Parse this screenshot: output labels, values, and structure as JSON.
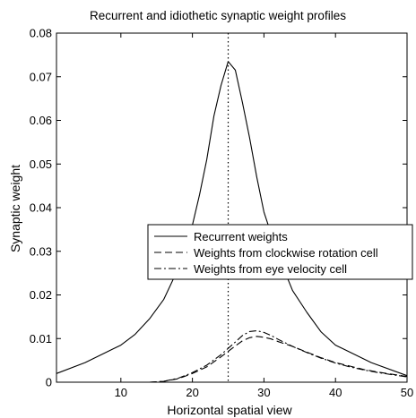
{
  "chart_data": {
    "type": "line",
    "title": "Recurrent and idiothetic synaptic weight profiles",
    "xlabel": "Horizontal spatial view",
    "ylabel": "Synaptic weight",
    "xlim": [
      1,
      50
    ],
    "ylim": [
      0,
      0.08
    ],
    "xticks": [
      10,
      20,
      30,
      40,
      50
    ],
    "yticks": [
      0,
      0.01,
      0.02,
      0.03,
      0.04,
      0.05,
      0.06,
      0.07,
      0.08
    ],
    "xtick_labels": [
      "10",
      "20",
      "30",
      "40",
      "50"
    ],
    "ytick_labels": [
      "0",
      "0.01",
      "0.02",
      "0.03",
      "0.04",
      "0.05",
      "0.06",
      "0.07",
      "0.08"
    ],
    "grid": false,
    "legend_position": "center-right",
    "reference_line": {
      "x": 25,
      "style": "dotted"
    },
    "series": [
      {
        "name": "Recurrent weights",
        "style": "solid",
        "x": [
          1,
          5,
          10,
          12,
          14,
          16,
          18,
          20,
          21,
          22,
          23,
          24,
          25,
          26,
          27,
          28,
          29,
          30,
          32,
          34,
          36,
          38,
          40,
          45,
          50
        ],
        "y": [
          0.002,
          0.0045,
          0.0085,
          0.011,
          0.0145,
          0.019,
          0.026,
          0.036,
          0.043,
          0.051,
          0.061,
          0.068,
          0.0735,
          0.0715,
          0.064,
          0.056,
          0.047,
          0.039,
          0.029,
          0.021,
          0.016,
          0.0115,
          0.0085,
          0.0045,
          0.0015
        ]
      },
      {
        "name": "Weights from clockwise rotation cell",
        "style": "dashed",
        "x": [
          14,
          16,
          18,
          20,
          22,
          24,
          26,
          27,
          28,
          29,
          30,
          31,
          32,
          34,
          36,
          38,
          40,
          42,
          44,
          46,
          48,
          50
        ],
        "y": [
          0,
          0.0002,
          0.0008,
          0.002,
          0.0035,
          0.0058,
          0.0083,
          0.0095,
          0.0102,
          0.0105,
          0.0103,
          0.0099,
          0.0093,
          0.0082,
          0.0069,
          0.0056,
          0.0045,
          0.0037,
          0.0029,
          0.0023,
          0.0018,
          0.0013
        ]
      },
      {
        "name": "Weights from eye velocity cell",
        "style": "dashdot",
        "x": [
          14,
          16,
          18,
          20,
          22,
          24,
          26,
          27,
          28,
          29,
          30,
          31,
          32,
          34,
          36,
          38,
          40,
          42,
          44,
          46,
          48,
          50
        ],
        "y": [
          0,
          0.0002,
          0.0009,
          0.0022,
          0.0039,
          0.0063,
          0.0092,
          0.0107,
          0.0116,
          0.0118,
          0.0114,
          0.0107,
          0.0098,
          0.0082,
          0.0068,
          0.0055,
          0.0044,
          0.0035,
          0.0028,
          0.0022,
          0.0017,
          0.0012
        ]
      }
    ]
  }
}
